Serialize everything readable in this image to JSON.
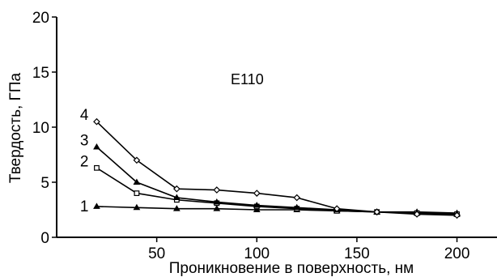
{
  "chart_data": {
    "type": "line",
    "title": "",
    "annotation": "E110",
    "xlabel": "Проникновение в поверхность, нм",
    "ylabel": "Твердость, ГПа",
    "xlim": [
      0,
      220
    ],
    "ylim": [
      0,
      20
    ],
    "x_ticks": [
      50,
      100,
      150,
      200
    ],
    "y_ticks": [
      0,
      5,
      10,
      15,
      20
    ],
    "x_tick_labels": [
      "50",
      "100",
      "150",
      "200"
    ],
    "y_tick_labels": [
      "0",
      "5",
      "10",
      "15",
      "20"
    ],
    "grid": false,
    "series": [
      {
        "name": "1",
        "marker": "triangle",
        "x": [
          20,
          40,
          60,
          80,
          100,
          120,
          140,
          160,
          180,
          200
        ],
        "y": [
          2.8,
          2.7,
          2.6,
          2.6,
          2.5,
          2.5,
          2.4,
          2.3,
          2.3,
          2.2
        ]
      },
      {
        "name": "2",
        "marker": "square",
        "x": [
          20,
          40,
          60,
          80,
          100,
          120,
          140,
          160,
          180,
          200
        ],
        "y": [
          6.3,
          4.0,
          3.4,
          3.1,
          2.8,
          2.6,
          2.4,
          2.3,
          2.2,
          2.1
        ]
      },
      {
        "name": "3",
        "marker": "triangle",
        "x": [
          20,
          40,
          60,
          80,
          100,
          120,
          140,
          160,
          180,
          200
        ],
        "y": [
          8.2,
          5.0,
          3.6,
          3.2,
          2.9,
          2.7,
          2.5,
          2.3,
          2.2,
          2.1
        ]
      },
      {
        "name": "4",
        "marker": "diamond",
        "x": [
          20,
          40,
          60,
          80,
          100,
          120,
          140,
          160,
          180,
          200
        ],
        "y": [
          10.5,
          7.0,
          4.4,
          4.3,
          4.0,
          3.6,
          2.6,
          2.3,
          2.1,
          2.0
        ]
      }
    ]
  }
}
